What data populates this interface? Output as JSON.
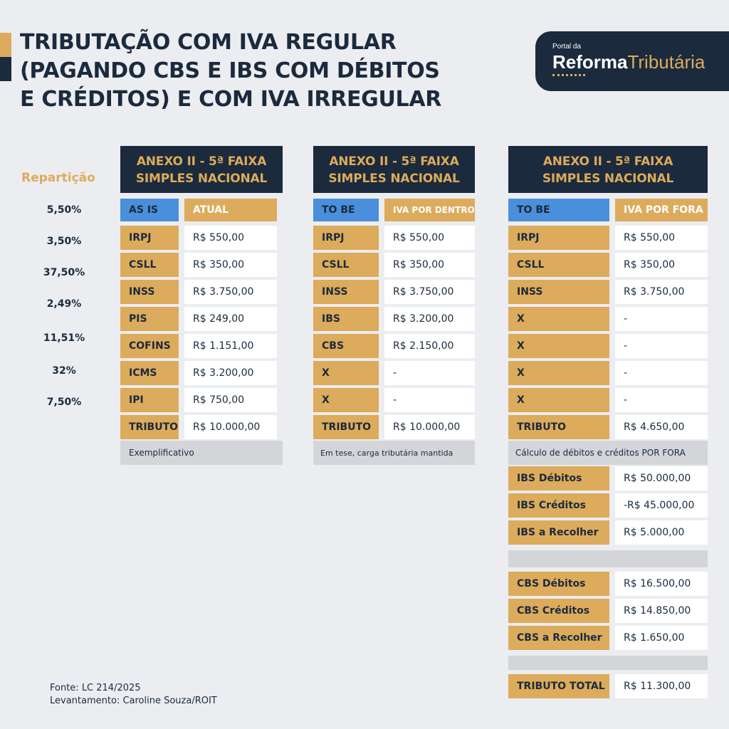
{
  "title": "TRIBUTAÇÃO COM IVA REGULAR\n(PAGANDO CBS E IBS COM DÉBITOS\nE CRÉDITOS) E COM IVA IRREGULAR",
  "logo": {
    "small": "Portal da",
    "bold": "Reforma",
    "light": "Tributária"
  },
  "reparticao": {
    "title": "Repartição",
    "values": [
      "5,50%",
      "3,50%",
      "37,50%",
      "2,49%",
      "11,51%",
      "32%",
      "7,50%"
    ]
  },
  "tables": [
    {
      "header": "ANEXO II - 5ª FAIXA\nSIMPLES NACIONAL",
      "sub": [
        "AS IS",
        "ATUAL"
      ],
      "rows": [
        [
          "IRPJ",
          "R$ 550,00"
        ],
        [
          "CSLL",
          "R$ 350,00"
        ],
        [
          "INSS",
          "R$ 3.750,00"
        ],
        [
          "PIS",
          "R$ 249,00"
        ],
        [
          "COFINS",
          "R$ 1.151,00"
        ],
        [
          "ICMS",
          "R$ 3.200,00"
        ],
        [
          "IPI",
          "R$ 750,00"
        ],
        [
          "TRIBUTO",
          "R$ 10.000,00"
        ]
      ],
      "note": "Exemplificativo"
    },
    {
      "header": "ANEXO II - 5ª FAIXA\nSIMPLES NACIONAL",
      "sub": [
        "TO BE",
        "IVA POR DENTRO"
      ],
      "rows": [
        [
          "IRPJ",
          "R$ 550,00"
        ],
        [
          "CSLL",
          "R$ 350,00"
        ],
        [
          "INSS",
          "R$ 3.750,00"
        ],
        [
          "IBS",
          "R$ 3.200,00"
        ],
        [
          "CBS",
          "R$ 2.150,00"
        ],
        [
          "X",
          "-"
        ],
        [
          "X",
          "-"
        ],
        [
          "TRIBUTO",
          "R$ 10.000,00"
        ]
      ],
      "note": "Em tese, carga tributária mantida"
    },
    {
      "header": "ANEXO II - 5ª FAIXA\nSIMPLES NACIONAL",
      "sub": [
        "TO BE",
        "IVA POR FORA"
      ],
      "rows": [
        [
          "IRPJ",
          "R$ 550,00"
        ],
        [
          "CSLL",
          "R$ 350,00"
        ],
        [
          "INSS",
          "R$ 3.750,00"
        ],
        [
          "X",
          "-"
        ],
        [
          "X",
          "-"
        ],
        [
          "X",
          "-"
        ],
        [
          "X",
          "-"
        ],
        [
          "TRIBUTO",
          "R$ 4.650,00"
        ]
      ],
      "note": "Cálculo de débitos e créditos POR FORA",
      "ibs": [
        [
          "IBS Débitos",
          "R$ 50.000,00"
        ],
        [
          "IBS Créditos",
          "-R$ 45.000,00"
        ],
        [
          "IBS a Recolher",
          "R$ 5.000,00"
        ]
      ],
      "cbs": [
        [
          "CBS Débitos",
          "R$ 16.500,00"
        ],
        [
          "CBS Créditos",
          "R$ 14.850,00"
        ],
        [
          "CBS a Recolher",
          "R$ 1.650,00"
        ]
      ],
      "total": [
        "TRIBUTO TOTAL",
        "R$ 11.300,00"
      ]
    }
  ],
  "footer": {
    "source": "Fonte: LC 214/2025",
    "survey": "Levantamento: Caroline Souza/ROIT"
  },
  "colors": {
    "navy": "#1b2a3d",
    "gold": "#dcab5b",
    "blue": "#4a8fdb",
    "background": "#ecedf1"
  }
}
